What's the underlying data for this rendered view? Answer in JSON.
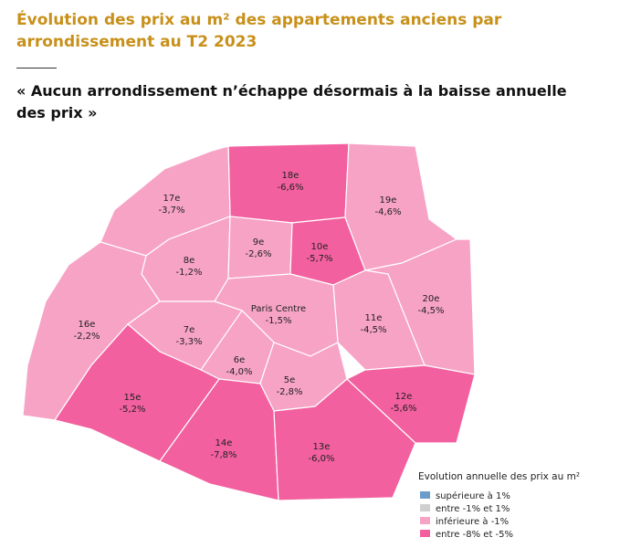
{
  "header": {
    "title": "Évolution des prix au m² des appartements anciens par arrondissement au T2 2023",
    "subtitle": "« Aucun arrondissement n’échappe désormais à la baisse annuelle des prix »"
  },
  "legend": {
    "title": "Evolution annuelle des prix au m²",
    "items": [
      {
        "label": "supérieure à 1%",
        "color": "#6c9cc9"
      },
      {
        "label": "entre -1% et 1%",
        "color": "#cfcfcf"
      },
      {
        "label": "inférieure à -1%",
        "color": "#f7a3c6"
      },
      {
        "label": "entre -8% et -5%",
        "color": "#f2609f"
      }
    ]
  },
  "districts": [
    {
      "name": "18e",
      "value": "-6,6%",
      "color": "#f2609f"
    },
    {
      "name": "17e",
      "value": "-3,7%",
      "color": "#f7a3c6"
    },
    {
      "name": "19e",
      "value": "-4,6%",
      "color": "#f7a3c6"
    },
    {
      "name": "8e",
      "value": "-1,2%",
      "color": "#f7a3c6"
    },
    {
      "name": "9e",
      "value": "-2,6%",
      "color": "#f7a3c6"
    },
    {
      "name": "10e",
      "value": "-5,7%",
      "color": "#f2609f"
    },
    {
      "name": "16e",
      "value": "-2,2%",
      "color": "#f7a3c6"
    },
    {
      "name": "20e",
      "value": "-4,5%",
      "color": "#f7a3c6"
    },
    {
      "name": "11e",
      "value": "-4,5%",
      "color": "#f7a3c6"
    },
    {
      "name": "Paris Centre",
      "value": "-1,5%",
      "color": "#f7a3c6"
    },
    {
      "name": "7e",
      "value": "-3,3%",
      "color": "#f7a3c6"
    },
    {
      "name": "6e",
      "value": "-4,0%",
      "color": "#f7a3c6"
    },
    {
      "name": "5e",
      "value": "-2,8%",
      "color": "#f7a3c6"
    },
    {
      "name": "15e",
      "value": "-5,2%",
      "color": "#f2609f"
    },
    {
      "name": "14e",
      "value": "-7,8%",
      "color": "#f2609f"
    },
    {
      "name": "13e",
      "value": "-6,0%",
      "color": "#f2609f"
    },
    {
      "name": "12e",
      "value": "-5,6%",
      "color": "#f2609f"
    }
  ]
}
